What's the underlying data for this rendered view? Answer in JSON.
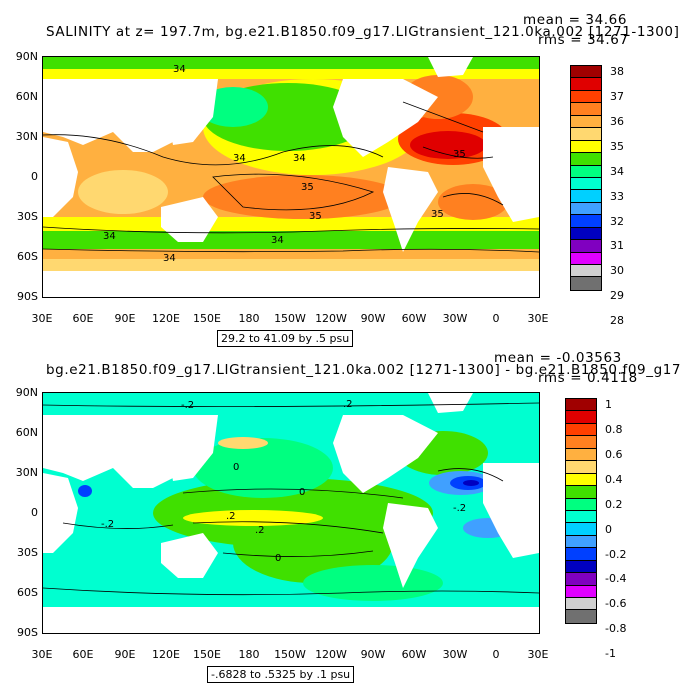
{
  "panel1": {
    "title": "SALINITY at z= 197.7m, bg.e21.B1850.f09_g17.LIGtransient_121.0ka.002 [1271-1300]",
    "mean": "mean = 34.66",
    "rms": "rms = 34.67",
    "range": "29.2 to 41.09 by .5 psu",
    "lat_labels": [
      "90N",
      "60N",
      "30N",
      "0",
      "30S",
      "60S",
      "90S"
    ],
    "lon_labels": [
      "30E",
      "60E",
      "90E",
      "120E",
      "150E",
      "180",
      "150W",
      "120W",
      "90W",
      "60W",
      "30W",
      "0",
      "30E"
    ],
    "contour_labels": [
      "34",
      "34",
      "34",
      "35",
      "35",
      "34",
      "34",
      "34",
      "35",
      "35"
    ],
    "colorbar": {
      "labels": [
        "38",
        "37",
        "36",
        "35",
        "34",
        "33",
        "32",
        "31",
        "30",
        "29",
        "28"
      ],
      "colors": [
        "#a00000",
        "#e00000",
        "#ff4000",
        "#ff8020",
        "#ffb040",
        "#ffd870",
        "#ffff00",
        "#40e000",
        "#00ff80",
        "#00ffd0",
        "#00d0ff",
        "#40a0ff",
        "#0040ff",
        "#0000c0",
        "#8000c0",
        "#e000ff",
        "#d0d0d0",
        "#707070"
      ]
    }
  },
  "panel2": {
    "title": "bg.e21.B1850.f09_g17.LIGtransient_121.0ka.002 [1271-1300] - bg.e21.B1850.f09_g17",
    "mean": "mean = -0.03563",
    "rms": "rms = 0.4118",
    "range": "-.6828 to .5325 by .1 psu",
    "lat_labels": [
      "90N",
      "60N",
      "30N",
      "0",
      "30S",
      "60S",
      "90S"
    ],
    "lon_labels": [
      "30E",
      "60E",
      "90E",
      "120E",
      "150E",
      "180",
      "150W",
      "120W",
      "90W",
      "60W",
      "30W",
      "0",
      "30E"
    ],
    "contour_labels": [
      "-.2",
      "0",
      "0",
      ".2",
      ".2",
      "-.2",
      "0",
      "-.2",
      ".2"
    ],
    "colorbar": {
      "labels": [
        "1",
        "0.8",
        "0.6",
        "0.4",
        "0.2",
        "0",
        "-0.2",
        "-0.4",
        "-0.6",
        "-0.8",
        "-1"
      ],
      "colors": [
        "#a00000",
        "#e00000",
        "#ff4000",
        "#ff8020",
        "#ffb040",
        "#ffd870",
        "#ffff00",
        "#40e000",
        "#00ff80",
        "#00ffd0",
        "#00d0ff",
        "#40a0ff",
        "#0040ff",
        "#0000c0",
        "#8000c0",
        "#e000ff",
        "#d0d0d0",
        "#707070"
      ]
    }
  }
}
